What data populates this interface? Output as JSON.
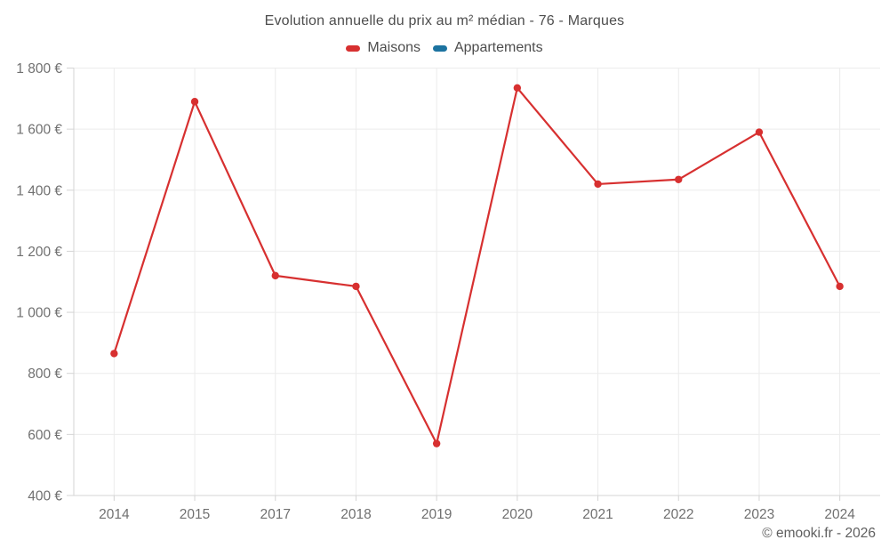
{
  "title": "Evolution annuelle du prix au m² médian - 76 - Marques",
  "watermark": "© emooki.fr - 2026",
  "legend": [
    {
      "label": "Maisons",
      "color": "#d73030"
    },
    {
      "label": "Appartements",
      "color": "#1c73a0"
    }
  ],
  "colors": {
    "maisons": "#d73030",
    "appartements": "#1c73a0",
    "gridline": "#ececec",
    "axis_line": "#d4d4d4",
    "tick_label": "#707070",
    "title_text": "#4d4d4d"
  },
  "chart_data": {
    "type": "line",
    "title": "Evolution annuelle du prix au m² médian - 76 - Marques",
    "categories": [
      "2014",
      "2015",
      "2017",
      "2018",
      "2019",
      "2020",
      "2021",
      "2022",
      "2023",
      "2024"
    ],
    "series": [
      {
        "name": "Maisons",
        "color": "#d73030",
        "values": [
          865,
          1690,
          1120,
          1085,
          570,
          1735,
          1420,
          1435,
          1590,
          1085
        ]
      },
      {
        "name": "Appartements",
        "color": "#1c73a0",
        "values": []
      }
    ],
    "xlabel": "",
    "ylabel": "",
    "ylim": [
      400,
      1800
    ],
    "y_ticks": [
      400,
      600,
      800,
      1000,
      1200,
      1400,
      1600,
      1800
    ],
    "y_tick_suffix": " €",
    "grid": true,
    "legend_position": "top"
  }
}
